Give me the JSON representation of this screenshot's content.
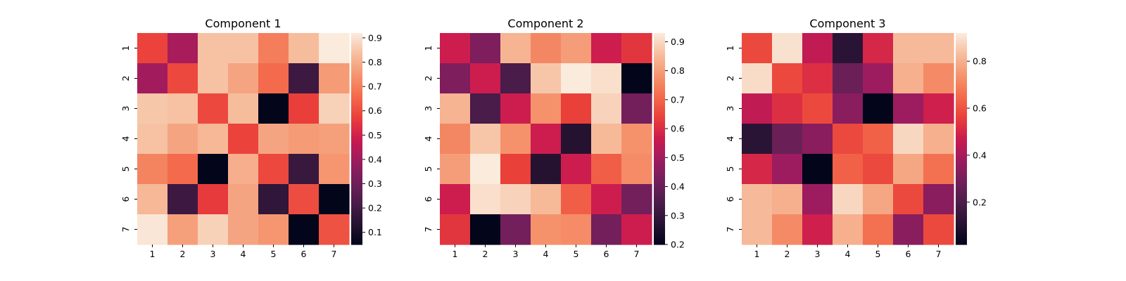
{
  "chart_data": [
    {
      "type": "heatmap",
      "title": "Component 1",
      "x_tick_labels": [
        "1",
        "2",
        "3",
        "4",
        "5",
        "6",
        "7"
      ],
      "y_tick_labels": [
        "1",
        "2",
        "3",
        "4",
        "5",
        "6",
        "7"
      ],
      "values": [
        [
          0.58,
          0.42,
          0.84,
          0.84,
          0.7,
          0.83,
          0.92
        ],
        [
          0.41,
          0.59,
          0.84,
          0.78,
          0.66,
          0.19,
          0.76
        ],
        [
          0.85,
          0.84,
          0.59,
          0.83,
          0.05,
          0.57,
          0.87
        ],
        [
          0.84,
          0.78,
          0.82,
          0.58,
          0.78,
          0.76,
          0.77
        ],
        [
          0.71,
          0.66,
          0.05,
          0.8,
          0.59,
          0.18,
          0.75
        ],
        [
          0.82,
          0.19,
          0.56,
          0.78,
          0.16,
          0.6,
          0.05
        ],
        [
          0.91,
          0.77,
          0.87,
          0.78,
          0.75,
          0.05,
          0.61
        ]
      ],
      "vmin": 0.05,
      "vmax": 0.92,
      "colorbar_ticks": [
        0.1,
        0.2,
        0.3,
        0.4,
        0.5,
        0.6,
        0.7,
        0.8,
        0.9
      ]
    },
    {
      "type": "heatmap",
      "title": "Component 2",
      "x_tick_labels": [
        "1",
        "2",
        "3",
        "4",
        "5",
        "6",
        "7"
      ],
      "y_tick_labels": [
        "1",
        "2",
        "3",
        "4",
        "5",
        "6",
        "7"
      ],
      "values": [
        [
          0.57,
          0.44,
          0.84,
          0.76,
          0.8,
          0.57,
          0.62
        ],
        [
          0.44,
          0.57,
          0.34,
          0.87,
          0.93,
          0.91,
          0.2
        ],
        [
          0.84,
          0.34,
          0.57,
          0.78,
          0.64,
          0.89,
          0.42
        ],
        [
          0.76,
          0.87,
          0.78,
          0.57,
          0.27,
          0.85,
          0.78
        ],
        [
          0.8,
          0.93,
          0.64,
          0.27,
          0.57,
          0.69,
          0.77
        ],
        [
          0.57,
          0.91,
          0.89,
          0.85,
          0.69,
          0.57,
          0.42
        ],
        [
          0.62,
          0.2,
          0.42,
          0.78,
          0.77,
          0.42,
          0.57
        ]
      ],
      "vmin": 0.2,
      "vmax": 0.93,
      "colorbar_ticks": [
        0.2,
        0.3,
        0.4,
        0.5,
        0.6,
        0.7,
        0.8,
        0.9
      ]
    },
    {
      "type": "heatmap",
      "title": "Component 3",
      "x_tick_labels": [
        "1",
        "2",
        "3",
        "4",
        "5",
        "6",
        "7"
      ],
      "y_tick_labels": [
        "1",
        "2",
        "3",
        "4",
        "5",
        "6",
        "7"
      ],
      "values": [
        [
          0.58,
          0.9,
          0.45,
          0.12,
          0.5,
          0.82,
          0.82
        ],
        [
          0.89,
          0.58,
          0.52,
          0.27,
          0.38,
          0.8,
          0.72
        ],
        [
          0.45,
          0.52,
          0.58,
          0.34,
          0.02,
          0.38,
          0.48
        ],
        [
          0.12,
          0.27,
          0.34,
          0.58,
          0.63,
          0.88,
          0.8
        ],
        [
          0.5,
          0.38,
          0.02,
          0.63,
          0.58,
          0.78,
          0.66
        ],
        [
          0.82,
          0.8,
          0.38,
          0.88,
          0.78,
          0.58,
          0.34
        ],
        [
          0.82,
          0.72,
          0.48,
          0.8,
          0.66,
          0.34,
          0.58
        ]
      ],
      "vmin": 0.02,
      "vmax": 0.92,
      "colorbar_ticks": [
        0.2,
        0.4,
        0.6,
        0.8
      ]
    }
  ]
}
